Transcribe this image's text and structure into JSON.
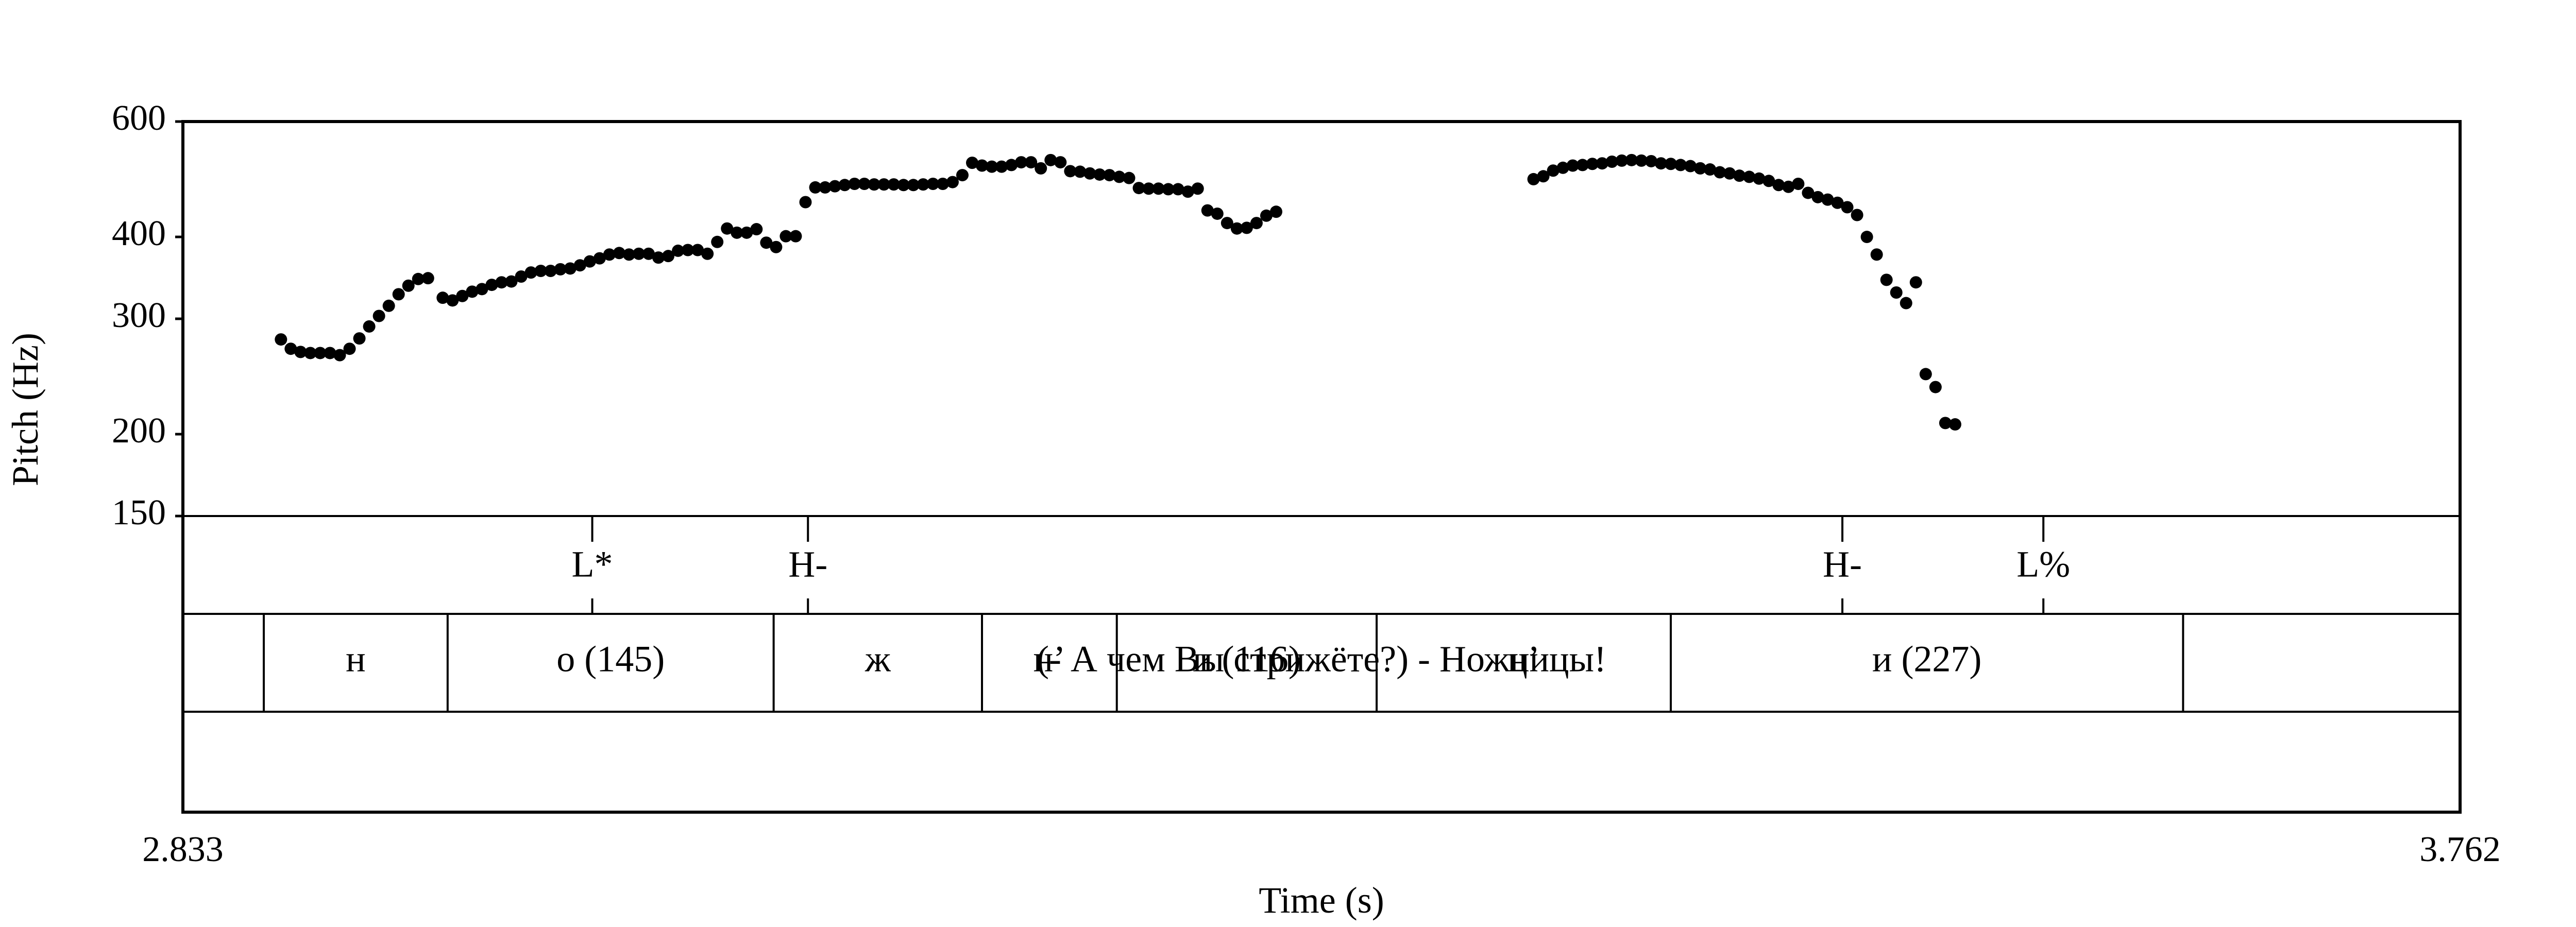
{
  "chart_data": {
    "type": "scatter",
    "xlabel": "Time (s)",
    "ylabel": "Pitch (Hz)",
    "xlim": [
      2.833,
      3.762
    ],
    "ylim": [
      150,
      600
    ],
    "y_scale": "log",
    "grid": false,
    "x_ticks": [
      "2.833",
      "3.762"
    ],
    "y_ticks": [
      {
        "value": 150,
        "label": "150"
      },
      {
        "value": 200,
        "label": "200"
      },
      {
        "value": 300,
        "label": "300"
      },
      {
        "value": 400,
        "label": "400"
      },
      {
        "value": 600,
        "label": "600"
      }
    ],
    "points": [
      [
        2.873,
        279
      ],
      [
        2.877,
        270
      ],
      [
        2.881,
        267
      ],
      [
        2.885,
        266
      ],
      [
        2.889,
        266
      ],
      [
        2.893,
        266
      ],
      [
        2.897,
        264
      ],
      [
        2.901,
        270
      ],
      [
        2.905,
        280
      ],
      [
        2.909,
        292
      ],
      [
        2.913,
        303
      ],
      [
        2.917,
        314
      ],
      [
        2.921,
        327
      ],
      [
        2.925,
        337
      ],
      [
        2.929,
        345
      ],
      [
        2.933,
        346
      ],
      [
        2.939,
        323
      ],
      [
        2.943,
        320
      ],
      [
        2.947,
        325
      ],
      [
        2.951,
        330
      ],
      [
        2.955,
        333
      ],
      [
        2.959,
        338
      ],
      [
        2.963,
        341
      ],
      [
        2.967,
        342
      ],
      [
        2.971,
        348
      ],
      [
        2.975,
        353
      ],
      [
        2.979,
        355
      ],
      [
        2.983,
        355
      ],
      [
        2.987,
        357
      ],
      [
        2.991,
        358
      ],
      [
        2.995,
        362
      ],
      [
        2.999,
        367
      ],
      [
        3.003,
        371
      ],
      [
        3.007,
        376
      ],
      [
        3.011,
        378
      ],
      [
        3.015,
        376
      ],
      [
        3.019,
        377
      ],
      [
        3.023,
        377
      ],
      [
        3.027,
        372
      ],
      [
        3.031,
        374
      ],
      [
        3.035,
        381
      ],
      [
        3.039,
        382
      ],
      [
        3.043,
        382
      ],
      [
        3.047,
        377
      ],
      [
        3.051,
        393
      ],
      [
        3.055,
        412
      ],
      [
        3.059,
        406
      ],
      [
        3.063,
        406
      ],
      [
        3.067,
        411
      ],
      [
        3.071,
        392
      ],
      [
        3.075,
        386
      ],
      [
        3.079,
        401
      ],
      [
        3.083,
        401
      ],
      [
        3.087,
        452
      ],
      [
        3.091,
        476
      ],
      [
        3.095,
        476
      ],
      [
        3.099,
        478
      ],
      [
        3.103,
        480
      ],
      [
        3.107,
        482
      ],
      [
        3.111,
        482
      ],
      [
        3.115,
        481
      ],
      [
        3.119,
        481
      ],
      [
        3.123,
        481
      ],
      [
        3.127,
        480
      ],
      [
        3.131,
        480
      ],
      [
        3.135,
        481
      ],
      [
        3.139,
        482
      ],
      [
        3.143,
        482
      ],
      [
        3.147,
        485
      ],
      [
        3.151,
        497
      ],
      [
        3.155,
        519
      ],
      [
        3.159,
        514
      ],
      [
        3.163,
        512
      ],
      [
        3.167,
        512
      ],
      [
        3.171,
        515
      ],
      [
        3.175,
        520
      ],
      [
        3.179,
        520
      ],
      [
        3.183,
        509
      ],
      [
        3.187,
        524
      ],
      [
        3.191,
        520
      ],
      [
        3.195,
        504
      ],
      [
        3.199,
        503
      ],
      [
        3.203,
        500
      ],
      [
        3.207,
        498
      ],
      [
        3.211,
        497
      ],
      [
        3.215,
        494
      ],
      [
        3.219,
        492
      ],
      [
        3.223,
        475
      ],
      [
        3.227,
        474
      ],
      [
        3.231,
        474
      ],
      [
        3.235,
        473
      ],
      [
        3.239,
        473
      ],
      [
        3.243,
        469
      ],
      [
        3.247,
        474
      ],
      [
        3.251,
        439
      ],
      [
        3.255,
        434
      ],
      [
        3.259,
        420
      ],
      [
        3.263,
        412
      ],
      [
        3.267,
        413
      ],
      [
        3.271,
        420
      ],
      [
        3.275,
        431
      ],
      [
        3.279,
        437
      ],
      [
        3.384,
        490
      ],
      [
        3.388,
        495
      ],
      [
        3.392,
        505
      ],
      [
        3.396,
        510
      ],
      [
        3.4,
        514
      ],
      [
        3.404,
        515
      ],
      [
        3.408,
        517
      ],
      [
        3.412,
        518
      ],
      [
        3.416,
        521
      ],
      [
        3.42,
        523
      ],
      [
        3.424,
        524
      ],
      [
        3.428,
        523
      ],
      [
        3.432,
        522
      ],
      [
        3.436,
        518
      ],
      [
        3.44,
        517
      ],
      [
        3.444,
        515
      ],
      [
        3.448,
        513
      ],
      [
        3.452,
        509
      ],
      [
        3.456,
        507
      ],
      [
        3.46,
        502
      ],
      [
        3.464,
        500
      ],
      [
        3.468,
        496
      ],
      [
        3.472,
        494
      ],
      [
        3.476,
        491
      ],
      [
        3.48,
        487
      ],
      [
        3.484,
        480
      ],
      [
        3.488,
        477
      ],
      [
        3.492,
        482
      ],
      [
        3.496,
        467
      ],
      [
        3.5,
        460
      ],
      [
        3.504,
        456
      ],
      [
        3.508,
        451
      ],
      [
        3.512,
        444
      ],
      [
        3.516,
        432
      ],
      [
        3.52,
        400
      ],
      [
        3.524,
        376
      ],
      [
        3.528,
        344
      ],
      [
        3.532,
        329
      ],
      [
        3.536,
        317
      ],
      [
        3.54,
        341
      ],
      [
        3.544,
        247
      ],
      [
        3.548,
        236
      ],
      [
        3.552,
        208
      ],
      [
        3.556,
        207
      ]
    ]
  },
  "tones": {
    "marks": [
      {
        "label": "L*",
        "time": 3.0
      },
      {
        "label": "H-",
        "time": 3.088
      },
      {
        "label": "H-",
        "time": 3.51
      },
      {
        "label": "L%",
        "time": 3.592
      }
    ]
  },
  "segments": {
    "boundaries": [
      2.866,
      2.941,
      3.074,
      3.159,
      3.214,
      3.32,
      3.44,
      3.649
    ],
    "intervals": [
      {
        "label": "н",
        "start": 2.866,
        "end": 2.941
      },
      {
        "label": "о (145)",
        "start": 2.941,
        "end": 3.074
      },
      {
        "label": "ж",
        "start": 3.074,
        "end": 3.159
      },
      {
        "label": "н’",
        "start": 3.159,
        "end": 3.214
      },
      {
        "label": "и (116)",
        "start": 3.214,
        "end": 3.32
      },
      {
        "label": "ц’",
        "start": 3.32,
        "end": 3.44
      },
      {
        "label": "и (227)",
        "start": 3.44,
        "end": 3.649
      }
    ]
  },
  "sentence": {
    "text": "(- А чем Вы стрижёте?) - Ножницы!"
  }
}
